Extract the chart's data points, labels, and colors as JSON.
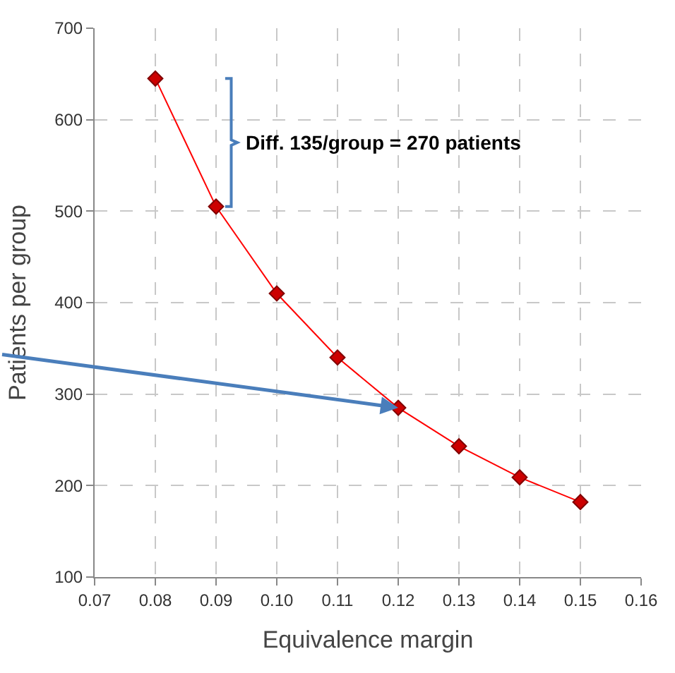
{
  "chart_data": {
    "type": "line",
    "xlabel": "Equivalence margin",
    "ylabel": "Patients per group",
    "x": [
      0.08,
      0.09,
      0.1,
      0.11,
      0.12,
      0.13,
      0.14,
      0.15
    ],
    "series": [
      {
        "color": "#ff0000",
        "values": [
          645,
          505,
          410,
          340,
          285,
          243,
          209,
          182
        ]
      }
    ],
    "marker": "diamond",
    "line_style": "solid",
    "grid": true,
    "xlim": [
      0.07,
      0.16
    ],
    "xticks": [
      {
        "value": 0.07,
        "label": "0.07"
      },
      {
        "value": 0.08,
        "label": "0.08"
      },
      {
        "value": 0.09,
        "label": "0.09"
      },
      {
        "value": 0.1,
        "label": "0.10"
      },
      {
        "value": 0.11,
        "label": "0.11"
      },
      {
        "value": 0.12,
        "label": "0.12"
      },
      {
        "value": 0.13,
        "label": "0.13"
      },
      {
        "value": 0.14,
        "label": "0.14"
      },
      {
        "value": 0.15,
        "label": "0.15"
      },
      {
        "value": 0.16,
        "label": "0.16"
      }
    ],
    "ylim": [
      100,
      700
    ],
    "yticks": [
      100,
      200,
      300,
      400,
      500,
      600,
      700
    ],
    "annotations": [
      "Diff. 135/group = 270 patients"
    ]
  }
}
